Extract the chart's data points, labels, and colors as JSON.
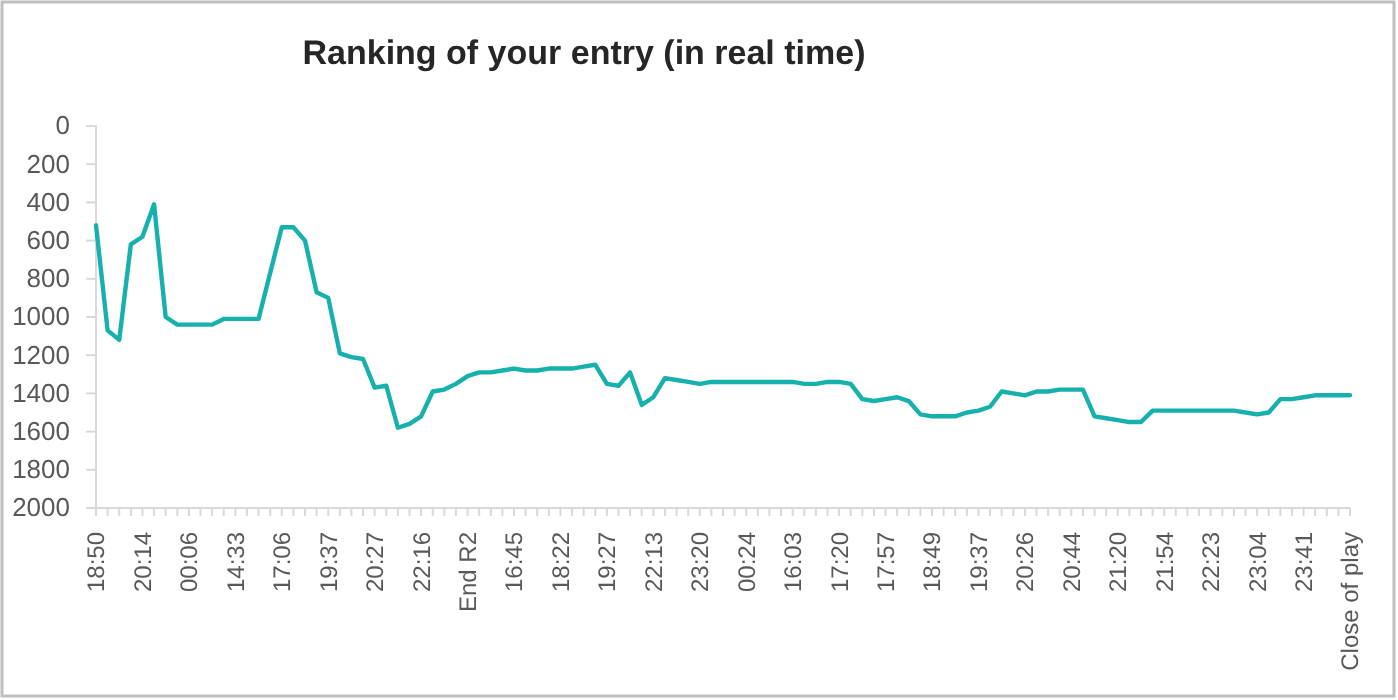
{
  "chart_data": {
    "type": "line",
    "title": "Ranking of your entry (in real time)",
    "categories": [
      "18:50",
      null,
      null,
      null,
      "20:14",
      null,
      null,
      null,
      "00:06",
      null,
      null,
      null,
      "14:33",
      null,
      null,
      null,
      "17:06",
      null,
      null,
      null,
      "19:37",
      null,
      null,
      null,
      "20:27",
      null,
      null,
      null,
      "22:16",
      null,
      null,
      null,
      "End R2",
      null,
      null,
      null,
      "16:45",
      null,
      null,
      null,
      "18:22",
      null,
      null,
      null,
      "19:27",
      null,
      null,
      null,
      "22:13",
      null,
      null,
      null,
      "23:20",
      null,
      null,
      null,
      "00:24",
      null,
      null,
      null,
      "16:03",
      null,
      null,
      null,
      "17:20",
      null,
      null,
      null,
      "17:57",
      null,
      null,
      null,
      "18:49",
      null,
      null,
      null,
      "19:37",
      null,
      null,
      null,
      "20:26",
      null,
      null,
      null,
      "20:44",
      null,
      null,
      null,
      "21:20",
      null,
      null,
      null,
      "21:54",
      null,
      null,
      null,
      "22:23",
      null,
      null,
      null,
      "23:04",
      null,
      null,
      null,
      "23:41",
      null,
      null,
      null,
      "Close of play"
    ],
    "series": [
      {
        "color": "#17b1ad",
        "values": [
          520,
          1070,
          1120,
          620,
          580,
          410,
          1000,
          1040,
          1040,
          1040,
          1040,
          1010,
          1010,
          1010,
          1010,
          770,
          530,
          530,
          600,
          870,
          900,
          1190,
          1210,
          1220,
          1370,
          1360,
          1580,
          1560,
          1520,
          1390,
          1380,
          1350,
          1310,
          1290,
          1290,
          1280,
          1270,
          1280,
          1280,
          1270,
          1270,
          1270,
          1260,
          1250,
          1350,
          1360,
          1290,
          1460,
          1420,
          1320,
          1330,
          1340,
          1350,
          1340,
          1340,
          1340,
          1340,
          1340,
          1340,
          1340,
          1340,
          1350,
          1350,
          1340,
          1340,
          1350,
          1430,
          1440,
          1430,
          1420,
          1440,
          1510,
          1520,
          1520,
          1520,
          1500,
          1490,
          1470,
          1390,
          1400,
          1410,
          1390,
          1390,
          1380,
          1380,
          1380,
          1520,
          1530,
          1540,
          1550,
          1550,
          1490,
          1490,
          1490,
          1490,
          1490,
          1490,
          1490,
          1490,
          1500,
          1510,
          1500,
          1430,
          1430,
          1420,
          1410,
          1410,
          1410,
          1410
        ]
      }
    ],
    "ylim": [
      2000,
      0
    ],
    "yticks": [
      0,
      200,
      400,
      600,
      800,
      1000,
      1200,
      1400,
      1600,
      1800,
      2000
    ],
    "grid": false,
    "marker": "none",
    "line_style": "solid"
  }
}
